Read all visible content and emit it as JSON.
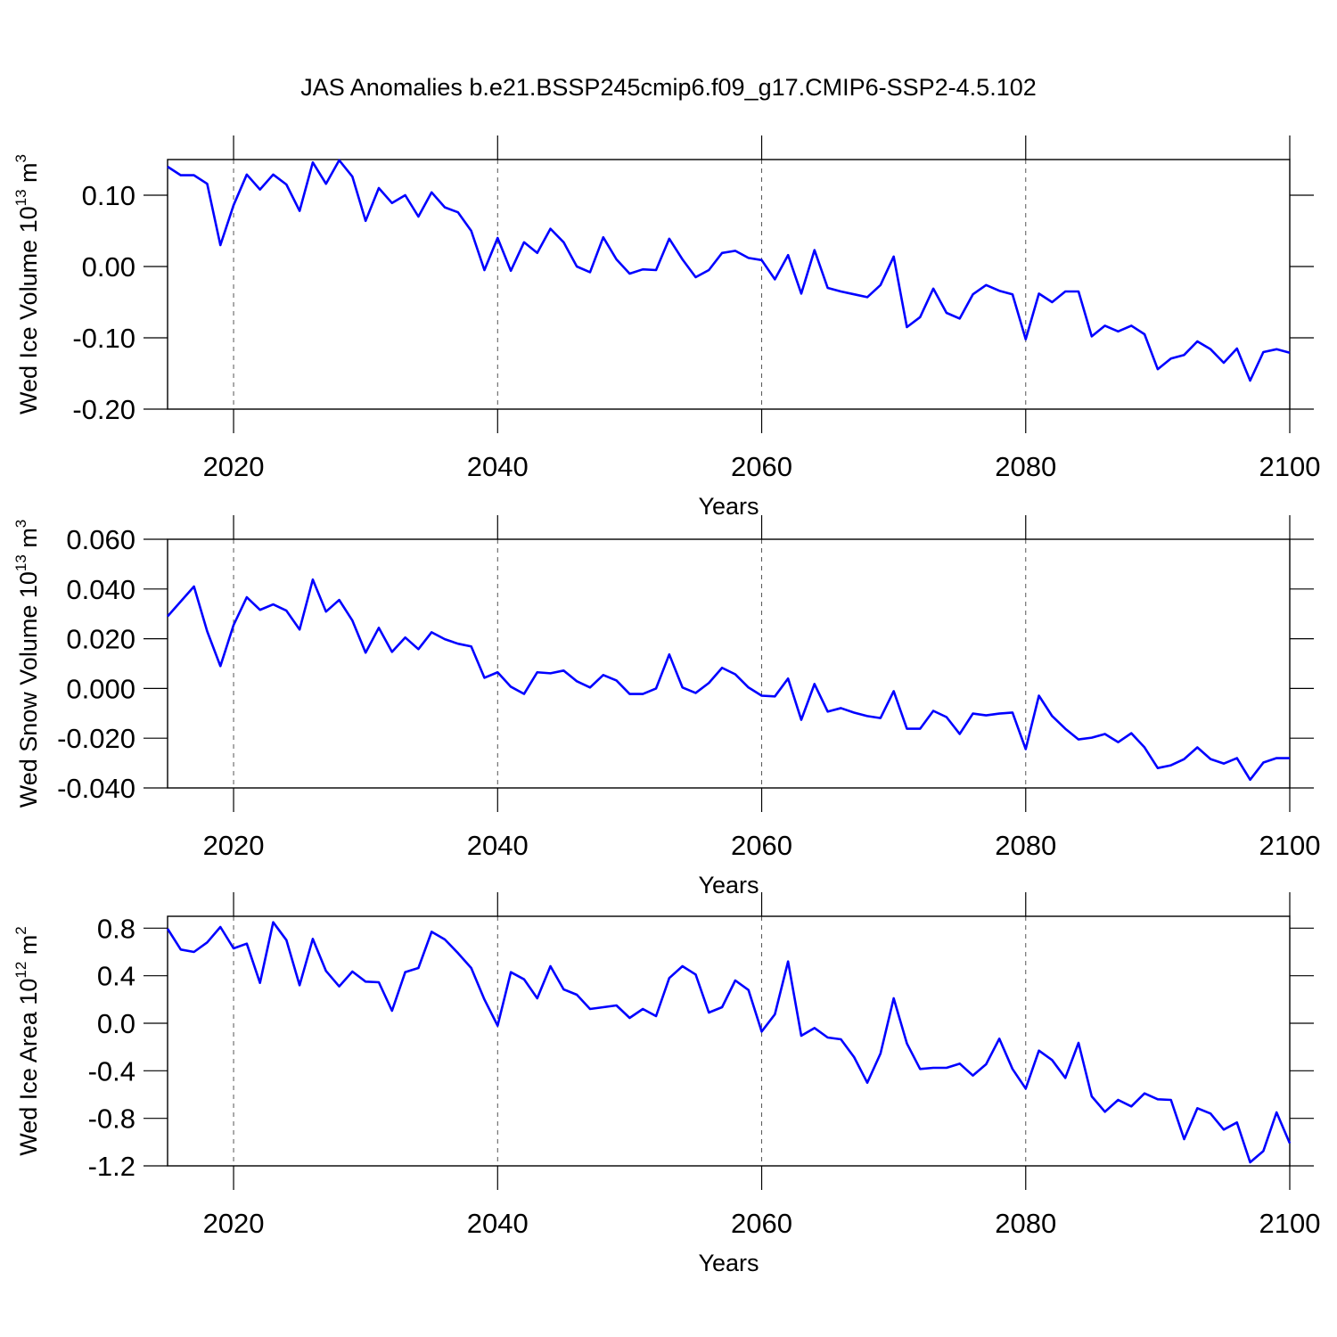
{
  "title": "JAS Anomalies b.e21.BSSP245cmip6.f09_g17.CMIP6-SSP2-4.5.102",
  "chart_data": [
    {
      "type": "line",
      "ylabel": [
        "Wed Ice Volume 10",
        "13",
        " m",
        "3"
      ],
      "xlabel": "Years",
      "xlim": [
        2015,
        2100
      ],
      "xticks": [
        2020,
        2040,
        2060,
        2080,
        2100
      ],
      "ylim": [
        -0.2,
        0.15
      ],
      "yticks": [
        {
          "value": 0.1,
          "label": "0.10"
        },
        {
          "value": 0,
          "label": "0.00"
        },
        {
          "value": -0.1,
          "label": "-0.10"
        },
        {
          "value": -0.2,
          "label": "-0.20"
        }
      ],
      "grid": "x",
      "x": [
        2015,
        2016,
        2017,
        2018,
        2019,
        2020,
        2021,
        2022,
        2023,
        2024,
        2025,
        2026,
        2027,
        2028,
        2029,
        2030,
        2031,
        2032,
        2033,
        2034,
        2035,
        2036,
        2037,
        2038,
        2039,
        2040,
        2041,
        2042,
        2043,
        2044,
        2045,
        2046,
        2047,
        2048,
        2049,
        2050,
        2051,
        2052,
        2053,
        2054,
        2055,
        2056,
        2057,
        2058,
        2059,
        2060,
        2061,
        2062,
        2063,
        2064,
        2065,
        2066,
        2067,
        2068,
        2069,
        2070,
        2071,
        2072,
        2073,
        2074,
        2075,
        2076,
        2077,
        2078,
        2079,
        2080,
        2081,
        2082,
        2083,
        2084,
        2085,
        2086,
        2087,
        2088,
        2089,
        2090,
        2091,
        2092,
        2093,
        2094,
        2095,
        2096,
        2097,
        2098,
        2099,
        2100
      ],
      "series": [
        {
          "color": "#0000ff",
          "values": [
            0.14,
            0.128,
            0.128,
            0.116,
            0.03,
            0.086,
            0.129,
            0.108,
            0.129,
            0.115,
            0.078,
            0.146,
            0.116,
            0.149,
            0.126,
            0.064,
            0.11,
            0.089,
            0.1,
            0.07,
            0.104,
            0.083,
            0.076,
            0.05,
            -0.005,
            0.04,
            -0.006,
            0.034,
            0.019,
            0.053,
            0.034,
            0.0,
            -0.008,
            0.041,
            0.01,
            -0.01,
            -0.004,
            -0.005,
            0.039,
            0.01,
            -0.015,
            -0.005,
            0.019,
            0.022,
            0.012,
            0.009,
            -0.018,
            0.016,
            -0.038,
            0.023,
            -0.03,
            -0.035,
            -0.039,
            -0.043,
            -0.026,
            0.014,
            -0.085,
            -0.071,
            -0.031,
            -0.065,
            -0.073,
            -0.039,
            -0.026,
            -0.034,
            -0.039,
            -0.102,
            -0.038,
            -0.05,
            -0.035,
            -0.035,
            -0.098,
            -0.083,
            -0.091,
            -0.083,
            -0.095,
            -0.144,
            -0.129,
            -0.124,
            -0.105,
            -0.116,
            -0.135,
            -0.115,
            -0.16,
            -0.12,
            -0.116,
            -0.121
          ]
        }
      ]
    },
    {
      "type": "line",
      "ylabel": [
        "Wed Snow Volume 10",
        "13",
        " m",
        "3"
      ],
      "xlabel": "Years",
      "xlim": [
        2015,
        2100
      ],
      "xticks": [
        2020,
        2040,
        2060,
        2080,
        2100
      ],
      "ylim": [
        -0.04,
        0.06
      ],
      "yticks": [
        {
          "value": 0.06,
          "label": "0.060"
        },
        {
          "value": 0.04,
          "label": "0.040"
        },
        {
          "value": 0.02,
          "label": "0.020"
        },
        {
          "value": 0,
          "label": "0.000"
        },
        {
          "value": -0.02,
          "label": "-0.020"
        },
        {
          "value": -0.04,
          "label": "-0.040"
        }
      ],
      "grid": "x",
      "x": [
        2015,
        2016,
        2017,
        2018,
        2019,
        2020,
        2021,
        2022,
        2023,
        2024,
        2025,
        2026,
        2027,
        2028,
        2029,
        2030,
        2031,
        2032,
        2033,
        2034,
        2035,
        2036,
        2037,
        2038,
        2039,
        2040,
        2041,
        2042,
        2043,
        2044,
        2045,
        2046,
        2047,
        2048,
        2049,
        2050,
        2051,
        2052,
        2053,
        2054,
        2055,
        2056,
        2057,
        2058,
        2059,
        2060,
        2061,
        2062,
        2063,
        2064,
        2065,
        2066,
        2067,
        2068,
        2069,
        2070,
        2071,
        2072,
        2073,
        2074,
        2075,
        2076,
        2077,
        2078,
        2079,
        2080,
        2081,
        2082,
        2083,
        2084,
        2085,
        2086,
        2087,
        2088,
        2089,
        2090,
        2091,
        2092,
        2093,
        2094,
        2095,
        2096,
        2097,
        2098,
        2099,
        2100
      ],
      "series": [
        {
          "color": "#0000ff",
          "values": [
            0.029,
            0.035,
            0.041,
            0.023,
            0.009,
            0.0255,
            0.0367,
            0.0316,
            0.0338,
            0.0313,
            0.0237,
            0.0438,
            0.0309,
            0.0356,
            0.0273,
            0.0144,
            0.0244,
            0.0147,
            0.0205,
            0.0158,
            0.0226,
            0.0198,
            0.018,
            0.0169,
            0.0043,
            0.0065,
            0.0007,
            -0.0022,
            0.0065,
            0.0061,
            0.0072,
            0.0029,
            0.0004,
            0.0054,
            0.0032,
            -0.0022,
            -0.0022,
            0,
            0.0137,
            0.0004,
            -0.0018,
            0.0022,
            0.0083,
            0.0057,
            0.0004,
            -0.0029,
            -0.0032,
            0.004,
            -0.0126,
            0.0018,
            -0.0093,
            -0.0079,
            -0.0097,
            -0.0111,
            -0.0119,
            -0.0011,
            -0.0162,
            -0.0162,
            -0.009,
            -0.0115,
            -0.0183,
            -0.0101,
            -0.0108,
            -0.0101,
            -0.0097,
            -0.0244,
            -0.0029,
            -0.0111,
            -0.0162,
            -0.0205,
            -0.0198,
            -0.0183,
            -0.0216,
            -0.018,
            -0.0237,
            -0.032,
            -0.0309,
            -0.0284,
            -0.0237,
            -0.0284,
            -0.0302,
            -0.028,
            -0.0367,
            -0.0298,
            -0.028,
            -0.028
          ]
        }
      ]
    },
    {
      "type": "line",
      "ylabel": [
        "Wed Ice Area 10",
        "12",
        " m",
        "2"
      ],
      "xlabel": "Years",
      "xlim": [
        2015,
        2100
      ],
      "xticks": [
        2020,
        2040,
        2060,
        2080,
        2100
      ],
      "ylim": [
        -1.2,
        0.9
      ],
      "yticks": [
        0.8,
        0.4,
        {
          "value": 0,
          "label": "0.0"
        },
        -0.4,
        -0.8,
        -1.2
      ],
      "grid": "x",
      "x": [
        2015,
        2016,
        2017,
        2018,
        2019,
        2020,
        2021,
        2022,
        2023,
        2024,
        2025,
        2026,
        2027,
        2028,
        2029,
        2030,
        2031,
        2032,
        2033,
        2034,
        2035,
        2036,
        2037,
        2038,
        2039,
        2040,
        2041,
        2042,
        2043,
        2044,
        2045,
        2046,
        2047,
        2048,
        2049,
        2050,
        2051,
        2052,
        2053,
        2054,
        2055,
        2056,
        2057,
        2058,
        2059,
        2060,
        2061,
        2062,
        2063,
        2064,
        2065,
        2066,
        2067,
        2068,
        2069,
        2070,
        2071,
        2072,
        2073,
        2074,
        2075,
        2076,
        2077,
        2078,
        2079,
        2080,
        2081,
        2082,
        2083,
        2084,
        2085,
        2086,
        2087,
        2088,
        2089,
        2090,
        2091,
        2092,
        2093,
        2094,
        2095,
        2096,
        2097,
        2098,
        2099,
        2100
      ],
      "series": [
        {
          "color": "#0000ff",
          "values": [
            0.795,
            0.62,
            0.6,
            0.68,
            0.81,
            0.63,
            0.67,
            0.34,
            0.85,
            0.7,
            0.32,
            0.71,
            0.44,
            0.31,
            0.435,
            0.35,
            0.345,
            0.105,
            0.43,
            0.465,
            0.77,
            0.705,
            0.59,
            0.465,
            0.2,
            -0.02,
            0.43,
            0.37,
            0.21,
            0.48,
            0.285,
            0.24,
            0.12,
            0.135,
            0.15,
            0.045,
            0.12,
            0.06,
            0.38,
            0.48,
            0.41,
            0.09,
            0.135,
            0.36,
            0.28,
            -0.07,
            0.075,
            0.52,
            -0.105,
            -0.04,
            -0.12,
            -0.135,
            -0.285,
            -0.5,
            -0.255,
            0.21,
            -0.17,
            -0.385,
            -0.375,
            -0.375,
            -0.34,
            -0.44,
            -0.345,
            -0.13,
            -0.385,
            -0.55,
            -0.23,
            -0.31,
            -0.46,
            -0.165,
            -0.615,
            -0.745,
            -0.645,
            -0.7,
            -0.59,
            -0.64,
            -0.645,
            -0.975,
            -0.715,
            -0.76,
            -0.895,
            -0.835,
            -1.17,
            -1.075,
            -0.75,
            -1.01
          ]
        }
      ]
    }
  ]
}
